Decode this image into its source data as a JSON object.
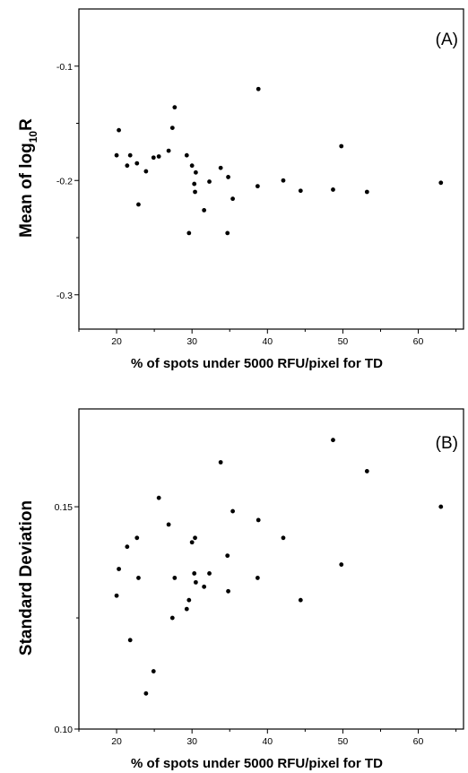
{
  "chart_data": [
    {
      "type": "scatter",
      "panel_label": "(A)",
      "xlabel": "% of spots under 5000 RFU/pixel for TD",
      "ylabel_main": "Mean of log",
      "ylabel_sub": "10",
      "ylabel_tail": "R",
      "xlim": [
        15,
        66
      ],
      "ylim": [
        -0.33,
        -0.05
      ],
      "xticks": [
        20,
        30,
        40,
        50,
        60
      ],
      "xtick_labels": [
        "20",
        "30",
        "40",
        "50",
        "60"
      ],
      "yticks": [
        -0.3,
        -0.2,
        -0.1
      ],
      "ytick_labels": [
        "-0.3",
        "-0.2",
        "-0.1"
      ],
      "points": [
        {
          "x": 20.0,
          "y": -0.178
        },
        {
          "x": 20.3,
          "y": -0.156
        },
        {
          "x": 21.4,
          "y": -0.187
        },
        {
          "x": 21.8,
          "y": -0.178
        },
        {
          "x": 22.7,
          "y": -0.185
        },
        {
          "x": 22.9,
          "y": -0.221
        },
        {
          "x": 23.9,
          "y": -0.192
        },
        {
          "x": 24.9,
          "y": -0.18
        },
        {
          "x": 25.6,
          "y": -0.179
        },
        {
          "x": 26.9,
          "y": -0.174
        },
        {
          "x": 27.4,
          "y": -0.154
        },
        {
          "x": 27.7,
          "y": -0.136
        },
        {
          "x": 29.3,
          "y": -0.178
        },
        {
          "x": 29.6,
          "y": -0.246
        },
        {
          "x": 30.0,
          "y": -0.187
        },
        {
          "x": 30.3,
          "y": -0.203
        },
        {
          "x": 30.4,
          "y": -0.21
        },
        {
          "x": 30.5,
          "y": -0.193
        },
        {
          "x": 31.6,
          "y": -0.226
        },
        {
          "x": 32.3,
          "y": -0.201
        },
        {
          "x": 33.8,
          "y": -0.189
        },
        {
          "x": 34.7,
          "y": -0.246
        },
        {
          "x": 34.8,
          "y": -0.197
        },
        {
          "x": 35.4,
          "y": -0.216
        },
        {
          "x": 38.7,
          "y": -0.205
        },
        {
          "x": 38.8,
          "y": -0.12
        },
        {
          "x": 42.1,
          "y": -0.2
        },
        {
          "x": 44.4,
          "y": -0.209
        },
        {
          "x": 48.7,
          "y": -0.208
        },
        {
          "x": 49.8,
          "y": -0.17
        },
        {
          "x": 53.2,
          "y": -0.21
        },
        {
          "x": 63.0,
          "y": -0.202
        }
      ]
    },
    {
      "type": "scatter",
      "panel_label": "(B)",
      "xlabel": "% of spots under 5000 RFU/pixel for TD",
      "ylabel_main": "Standard Deviation",
      "xlim": [
        15,
        66
      ],
      "ylim": [
        0.1,
        0.172
      ],
      "xticks": [
        20,
        30,
        40,
        50,
        60
      ],
      "xtick_labels": [
        "20",
        "30",
        "40",
        "50",
        "60"
      ],
      "yticks": [
        0.1,
        0.15
      ],
      "ytick_labels": [
        "0.10",
        "0.15"
      ],
      "points": [
        {
          "x": 20.0,
          "y": 0.13
        },
        {
          "x": 20.3,
          "y": 0.136
        },
        {
          "x": 21.4,
          "y": 0.141
        },
        {
          "x": 21.8,
          "y": 0.12
        },
        {
          "x": 22.7,
          "y": 0.143
        },
        {
          "x": 22.9,
          "y": 0.134
        },
        {
          "x": 23.9,
          "y": 0.108
        },
        {
          "x": 24.9,
          "y": 0.113
        },
        {
          "x": 25.6,
          "y": 0.152
        },
        {
          "x": 26.9,
          "y": 0.146
        },
        {
          "x": 27.4,
          "y": 0.125
        },
        {
          "x": 27.7,
          "y": 0.134
        },
        {
          "x": 29.3,
          "y": 0.127
        },
        {
          "x": 29.6,
          "y": 0.129
        },
        {
          "x": 30.0,
          "y": 0.142
        },
        {
          "x": 30.3,
          "y": 0.135
        },
        {
          "x": 30.4,
          "y": 0.143
        },
        {
          "x": 30.5,
          "y": 0.133
        },
        {
          "x": 31.6,
          "y": 0.132
        },
        {
          "x": 32.3,
          "y": 0.135
        },
        {
          "x": 33.8,
          "y": 0.16
        },
        {
          "x": 34.7,
          "y": 0.139
        },
        {
          "x": 34.8,
          "y": 0.131
        },
        {
          "x": 35.4,
          "y": 0.149
        },
        {
          "x": 38.7,
          "y": 0.134
        },
        {
          "x": 38.8,
          "y": 0.147
        },
        {
          "x": 42.1,
          "y": 0.143
        },
        {
          "x": 44.4,
          "y": 0.129
        },
        {
          "x": 48.7,
          "y": 0.165
        },
        {
          "x": 49.8,
          "y": 0.137
        },
        {
          "x": 53.2,
          "y": 0.158
        },
        {
          "x": 63.0,
          "y": 0.15
        }
      ]
    }
  ]
}
